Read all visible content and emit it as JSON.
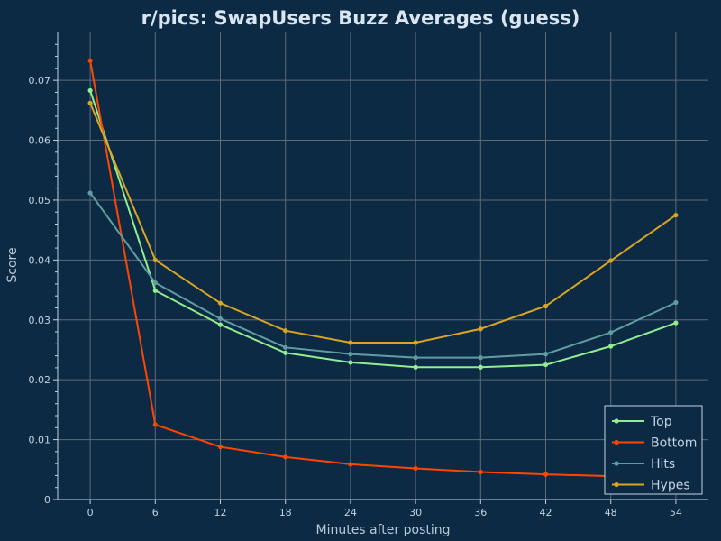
{
  "chart_data": {
    "type": "line",
    "title": "r/pics: SwapUsers Buzz Averages (guess)",
    "xlabel": "Minutes after posting",
    "ylabel": "Score",
    "x": [
      0,
      6,
      12,
      18,
      24,
      30,
      36,
      42,
      48,
      54
    ],
    "xlim": [
      -3,
      57
    ],
    "ylim": [
      0,
      0.078
    ],
    "xticks": [
      0,
      6,
      12,
      18,
      24,
      30,
      36,
      42,
      48,
      54
    ],
    "yticks": [
      0,
      0.01,
      0.02,
      0.03,
      0.04,
      0.05,
      0.06,
      0.07
    ],
    "ytick_labels": [
      "0",
      "0.01",
      "0.02",
      "0.03",
      "0.04",
      "0.05",
      "0.06",
      "0.07"
    ],
    "grid": true,
    "legend_position": "bottom-right",
    "series": [
      {
        "name": "Top",
        "color": "#90ee90",
        "values": [
          0.0683,
          0.0349,
          0.0292,
          0.0245,
          0.0229,
          0.0221,
          0.0221,
          0.0225,
          0.0256,
          0.0295
        ]
      },
      {
        "name": "Bottom",
        "color": "#ff4500",
        "values": [
          0.0733,
          0.0125,
          0.0088,
          0.0071,
          0.0059,
          0.0052,
          0.0046,
          0.0042,
          0.0039,
          0.0037
        ]
      },
      {
        "name": "Hits",
        "color": "#5f9ea0",
        "values": [
          0.0512,
          0.0362,
          0.0302,
          0.0254,
          0.0243,
          0.0237,
          0.0237,
          0.0243,
          0.0279,
          0.0329
        ]
      },
      {
        "name": "Hypes",
        "color": "#daa520",
        "values": [
          0.0662,
          0.04,
          0.0328,
          0.0282,
          0.0262,
          0.0262,
          0.0285,
          0.0323,
          0.0399,
          0.0475
        ]
      }
    ]
  }
}
